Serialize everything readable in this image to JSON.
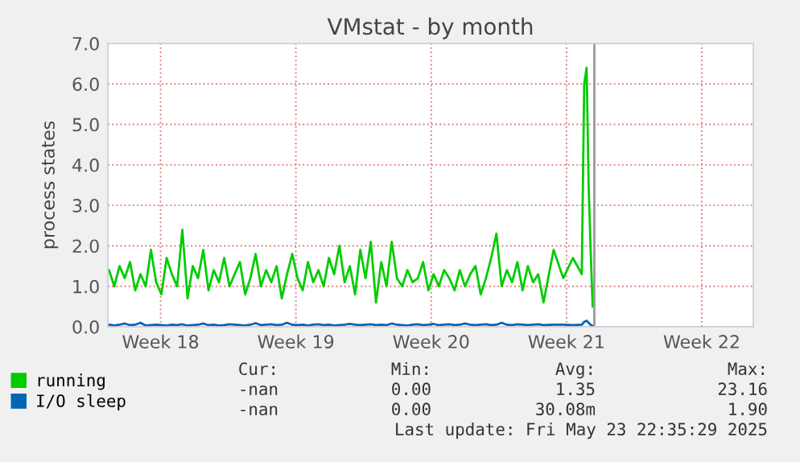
{
  "chart_data": {
    "type": "line",
    "title": "VMstat - by month",
    "ylabel": "process states",
    "x": [
      "2025-04-28T20:00",
      "2025-04-29T02:30",
      "2025-04-29T09:00",
      "2025-04-29T15:30",
      "2025-04-29T22:00",
      "2025-04-30T04:30",
      "2025-04-30T11:00",
      "2025-04-30T17:30",
      "2025-05-01T00:00",
      "2025-05-01T06:30",
      "2025-05-01T13:00",
      "2025-05-01T19:30",
      "2025-05-02T02:00",
      "2025-05-02T08:30",
      "2025-05-02T15:00",
      "2025-05-02T21:30",
      "2025-05-03T04:00",
      "2025-05-03T10:30",
      "2025-05-03T17:00",
      "2025-05-03T23:30",
      "2025-05-04T06:00",
      "2025-05-04T12:30",
      "2025-05-04T19:00",
      "2025-05-05T01:30",
      "2025-05-05T08:00",
      "2025-05-05T14:30",
      "2025-05-05T21:00",
      "2025-05-06T03:30",
      "2025-05-06T10:00",
      "2025-05-06T16:30",
      "2025-05-06T23:00",
      "2025-05-07T05:30",
      "2025-05-07T12:00",
      "2025-05-07T18:30",
      "2025-05-08T01:00",
      "2025-05-08T07:30",
      "2025-05-08T14:00",
      "2025-05-08T20:30",
      "2025-05-09T03:00",
      "2025-05-09T09:30",
      "2025-05-09T16:00",
      "2025-05-09T22:30",
      "2025-05-10T05:00",
      "2025-05-10T11:30",
      "2025-05-10T18:00",
      "2025-05-11T00:30",
      "2025-05-11T07:00",
      "2025-05-11T13:30",
      "2025-05-11T20:00",
      "2025-05-12T02:30",
      "2025-05-12T09:00",
      "2025-05-12T15:30",
      "2025-05-12T22:00",
      "2025-05-13T04:30",
      "2025-05-13T11:00",
      "2025-05-13T17:30",
      "2025-05-14T00:00",
      "2025-05-14T06:30",
      "2025-05-14T13:00",
      "2025-05-14T19:30",
      "2025-05-15T02:00",
      "2025-05-15T08:30",
      "2025-05-15T15:00",
      "2025-05-15T21:30",
      "2025-05-16T04:00",
      "2025-05-16T10:30",
      "2025-05-16T17:00",
      "2025-05-16T23:30",
      "2025-05-17T06:00",
      "2025-05-17T12:30",
      "2025-05-17T19:00",
      "2025-05-18T01:30",
      "2025-05-18T08:00",
      "2025-05-18T14:30",
      "2025-05-18T21:00",
      "2025-05-19T03:30",
      "2025-05-19T10:00",
      "2025-05-19T16:30",
      "2025-05-19T23:00",
      "2025-05-20T05:30",
      "2025-05-20T12:00",
      "2025-05-20T18:30",
      "2025-05-21T01:00",
      "2025-05-21T07:30",
      "2025-05-21T20:00",
      "2025-05-22T08:00",
      "2025-05-22T20:00",
      "2025-05-23T07:00",
      "2025-05-23T10:00",
      "2025-05-23T13:00",
      "2025-05-23T15:30",
      "2025-05-23T18:00",
      "2025-05-23T20:30"
    ],
    "series": [
      {
        "name": "running",
        "color": "#00cc00",
        "values": [
          1.4,
          1.0,
          1.5,
          1.2,
          1.6,
          0.9,
          1.3,
          1.0,
          1.9,
          1.1,
          0.8,
          1.7,
          1.3,
          1.0,
          2.4,
          0.7,
          1.5,
          1.2,
          1.9,
          0.9,
          1.4,
          1.1,
          1.7,
          1.0,
          1.3,
          1.6,
          0.8,
          1.2,
          1.8,
          1.0,
          1.4,
          1.1,
          1.5,
          0.7,
          1.3,
          1.8,
          1.2,
          0.9,
          1.6,
          1.1,
          1.4,
          1.0,
          1.7,
          1.3,
          2.0,
          1.1,
          1.5,
          0.8,
          1.9,
          1.2,
          2.1,
          0.6,
          1.6,
          1.0,
          2.1,
          1.2,
          1.0,
          1.4,
          1.1,
          1.2,
          1.6,
          0.9,
          1.3,
          1.0,
          1.4,
          1.2,
          0.9,
          1.4,
          1.0,
          1.3,
          1.5,
          0.8,
          1.2,
          1.7,
          2.3,
          1.0,
          1.4,
          1.1,
          1.6,
          0.9,
          1.5,
          1.1,
          1.3,
          0.6,
          1.9,
          1.2,
          1.7,
          1.3,
          6.0,
          6.4,
          3.5,
          1.9,
          0.5
        ]
      },
      {
        "name": "I/O sleep",
        "color": "#0066b3",
        "values": [
          0.05,
          0.03,
          0.05,
          0.08,
          0.04,
          0.05,
          0.1,
          0.03,
          0.04,
          0.05,
          0.04,
          0.03,
          0.05,
          0.04,
          0.06,
          0.03,
          0.04,
          0.05,
          0.08,
          0.04,
          0.05,
          0.03,
          0.04,
          0.06,
          0.05,
          0.04,
          0.03,
          0.05,
          0.09,
          0.04,
          0.05,
          0.06,
          0.04,
          0.05,
          0.1,
          0.05,
          0.04,
          0.05,
          0.03,
          0.05,
          0.06,
          0.04,
          0.05,
          0.03,
          0.04,
          0.05,
          0.07,
          0.05,
          0.04,
          0.05,
          0.06,
          0.04,
          0.05,
          0.04,
          0.08,
          0.05,
          0.04,
          0.03,
          0.05,
          0.06,
          0.04,
          0.05,
          0.07,
          0.04,
          0.05,
          0.06,
          0.04,
          0.05,
          0.08,
          0.05,
          0.04,
          0.05,
          0.06,
          0.04,
          0.05,
          0.1,
          0.05,
          0.04,
          0.06,
          0.05,
          0.04,
          0.05,
          0.06,
          0.04,
          0.05,
          0.05,
          0.04,
          0.05,
          0.12,
          0.15,
          0.1,
          0.05,
          0.02
        ]
      }
    ],
    "xlim": [
      "2025-04-28T18:30",
      "2025-06-01T04:00"
    ],
    "ylim": [
      0,
      7.0
    ],
    "xticks": [
      {
        "value": "2025-05-01T12:00",
        "label": "Week 18"
      },
      {
        "value": "2025-05-08T12:00",
        "label": "Week 19"
      },
      {
        "value": "2025-05-15T12:00",
        "label": "Week 20"
      },
      {
        "value": "2025-05-22T12:00",
        "label": "Week 21"
      },
      {
        "value": "2025-05-29T12:00",
        "label": "Week 22"
      }
    ],
    "yticks": [
      {
        "value": 0,
        "label": "0.0"
      },
      {
        "value": 1,
        "label": "1.0"
      },
      {
        "value": 2,
        "label": "2.0"
      },
      {
        "value": 3,
        "label": "3.0"
      },
      {
        "value": 4,
        "label": "4.0"
      },
      {
        "value": 5,
        "label": "5.0"
      },
      {
        "value": 6,
        "label": "6.0"
      },
      {
        "value": 7,
        "label": "7.0"
      }
    ],
    "ref_lines": [
      {
        "axis": "x",
        "value": "2025-05-23T22:35",
        "color": "#999999"
      }
    ],
    "grid": true,
    "legend": "bottom",
    "marker": "none",
    "line_style": "solid",
    "annotations": [
      "Cur:",
      "Min:",
      "Avg:",
      "Max:",
      "-nan",
      "0.00",
      "1.35",
      "23.16",
      "-nan",
      "0.00",
      "30.08m",
      "1.90",
      "Last update: Fri May 23 22:35:29 2025"
    ]
  }
}
